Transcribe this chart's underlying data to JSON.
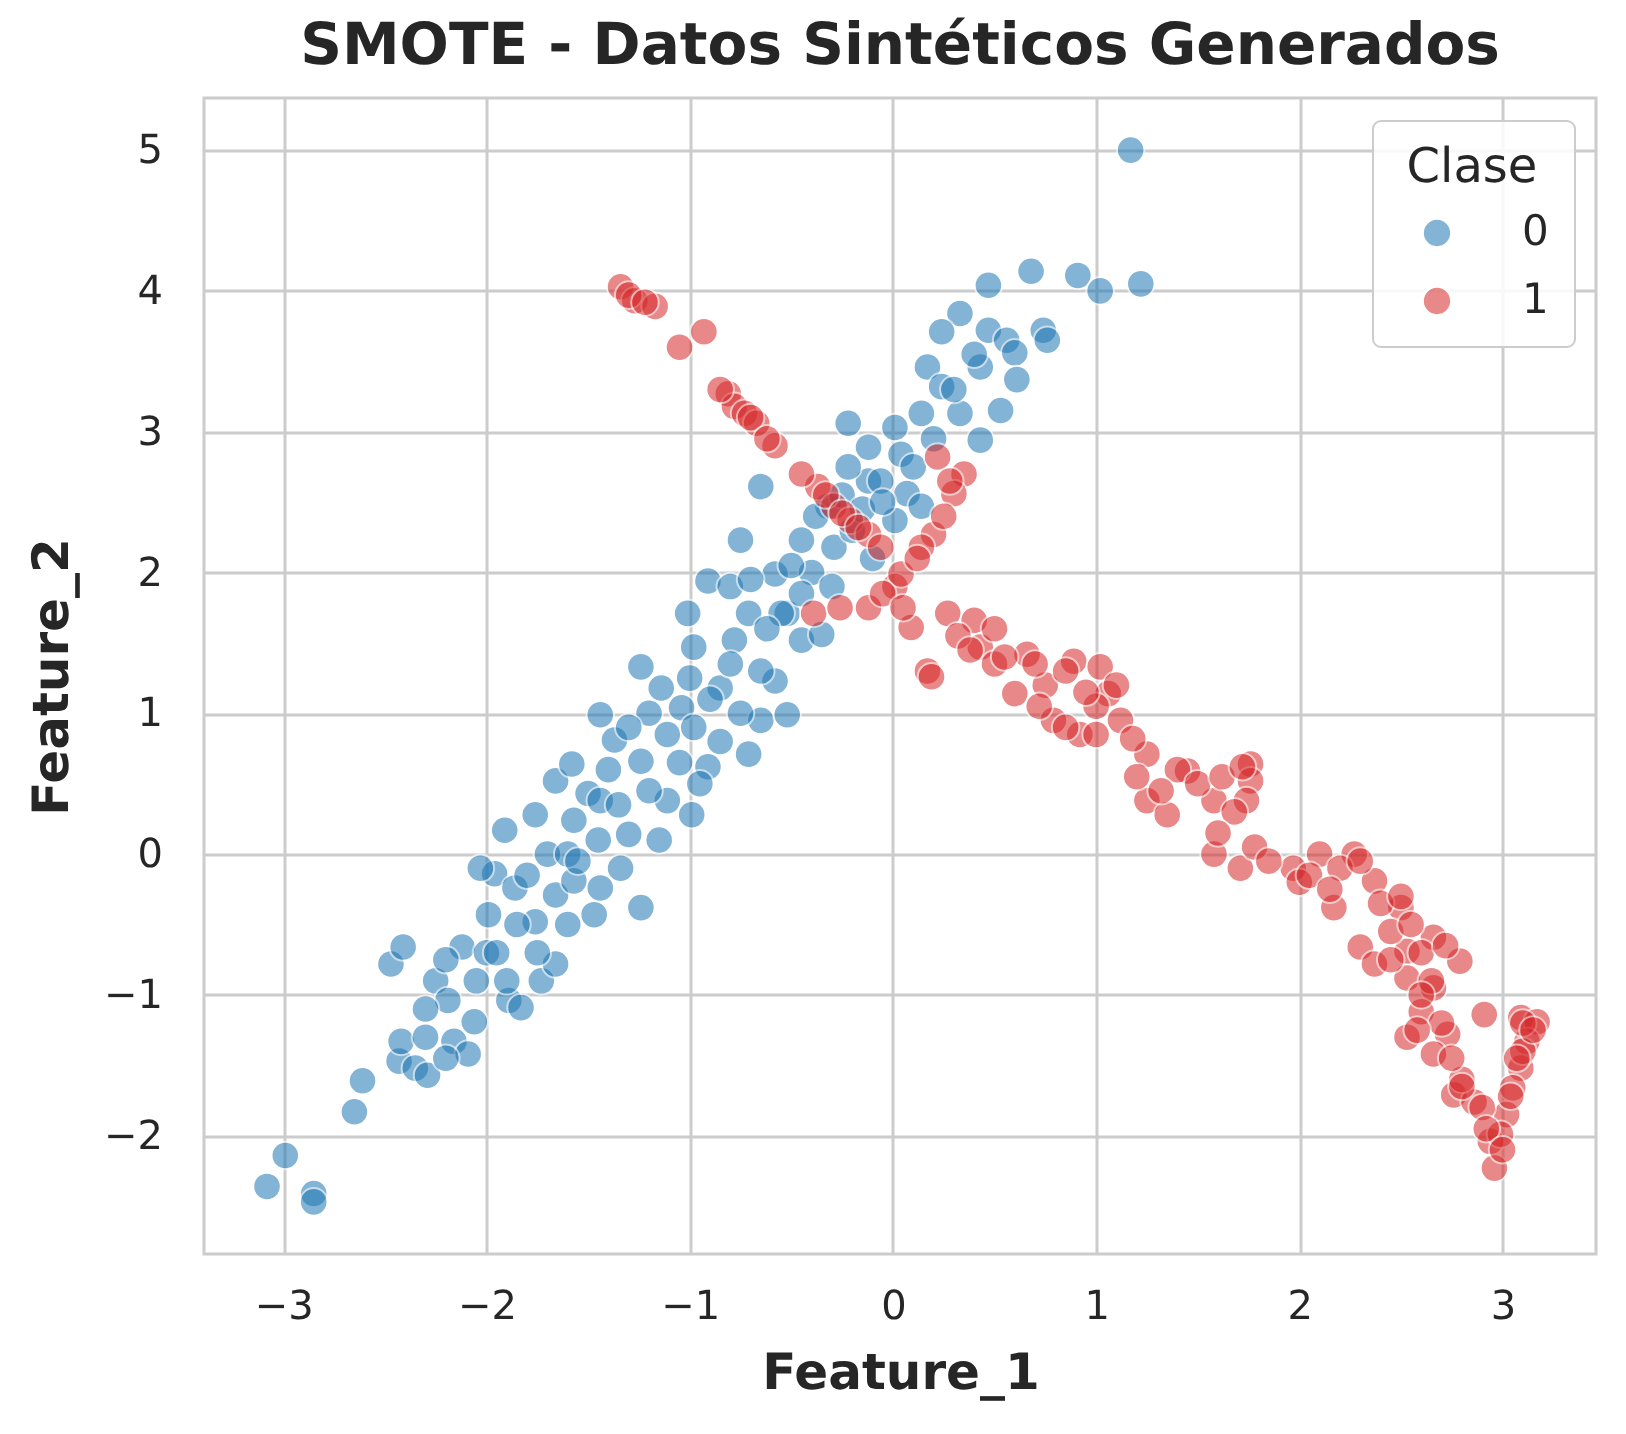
{
  "chart_data": {
    "type": "scatter",
    "title": "SMOTE - Datos Sintéticos Generados",
    "xlabel": "Feature_1",
    "ylabel": "Feature_2",
    "legend_title": "Clase",
    "legend": "top right",
    "grid": true,
    "marker": "circle",
    "xlim": [
      -3.39,
      3.46
    ],
    "ylim": [
      -2.84,
      5.37
    ],
    "xticks": [
      {
        "value": -3,
        "label": "−3"
      },
      {
        "value": -2,
        "label": "−2"
      },
      {
        "value": -1,
        "label": "−1"
      },
      0,
      1,
      2,
      3
    ],
    "yticks": [
      {
        "value": -2,
        "label": "−2"
      },
      {
        "value": -1,
        "label": "−1"
      },
      0,
      1,
      2,
      3,
      4,
      5
    ],
    "series": [
      {
        "name": "0",
        "color": "#1f77b4",
        "x": [
          -3.08,
          -2.99,
          -2.85,
          -2.85,
          -2.65,
          -2.61,
          -2.43,
          -2.35,
          -2.29,
          -2.42,
          -2.47,
          -2.41,
          -2.16,
          -2.09,
          -2.06,
          -2.25,
          -2.19,
          -2.12,
          -1.99,
          -1.96,
          -1.91,
          -2.03,
          -1.86,
          -1.89,
          -1.83,
          -1.73,
          -1.66,
          -1.76,
          -1.66,
          -1.7,
          -1.76,
          -1.66,
          -1.58,
          -1.57,
          -1.5,
          -1.57,
          -1.47,
          -1.44,
          -1.44,
          -1.37,
          -1.44,
          -1.3,
          -1.24,
          -1.34,
          -1.24,
          -1.24,
          -1.14,
          -1.11,
          -1.11,
          -0.99,
          -1.04,
          -0.98,
          -0.91,
          -0.85,
          -0.71,
          -0.78,
          -0.98,
          -0.65,
          -0.52,
          -0.58,
          -0.71,
          -0.45,
          -0.52,
          -1.01,
          -0.91,
          -0.75,
          -0.65,
          -0.45,
          -0.58,
          -0.55,
          -0.35,
          -0.29,
          -0.22,
          -0.12,
          -0.12,
          -0.22,
          -0.32,
          0.01,
          1.17,
          0.47,
          0.68,
          0.91,
          1.02,
          1.22,
          0.33,
          0.24,
          0.47,
          0.56,
          0.74,
          0.76,
          0.6,
          0.43,
          0.61,
          0.17,
          0.24,
          0.53,
          0.33,
          0.14,
          0.43,
          0.04,
          -0.06,
          0.07,
          0.01,
          0.14,
          -0.2,
          -0.1,
          -0.4,
          -0.8,
          -1.2,
          -1.6,
          -2.3,
          -2.0,
          -2.3,
          -2.2,
          -2.05,
          -1.95,
          -1.85,
          -1.8,
          -1.75,
          -1.6,
          -1.55,
          -1.45,
          -1.4,
          -1.35,
          -1.3,
          -1.2,
          -1.15,
          -1.05,
          -1.0,
          -0.95,
          -0.9,
          -0.85,
          -0.8,
          -0.75,
          -0.7,
          -0.65,
          -0.62,
          -0.5,
          -0.45,
          -0.38,
          -0.3,
          -0.25,
          -0.15,
          -0.05,
          0.1,
          0.2,
          0.3,
          0.4,
          -1.9,
          -2.2
        ],
        "values": [
          -2.36,
          -2.14,
          -2.41,
          -2.47,
          -1.83,
          -1.61,
          -1.47,
          -1.52,
          -1.57,
          -1.33,
          -0.78,
          -0.66,
          -1.33,
          -1.42,
          -1.19,
          -0.9,
          -1.04,
          -0.66,
          -0.43,
          -0.14,
          0.17,
          -0.1,
          -0.24,
          -1.04,
          -1.09,
          -0.9,
          -0.78,
          -0.48,
          -0.29,
          0.0,
          0.28,
          0.52,
          0.64,
          0.24,
          0.43,
          -0.19,
          -0.43,
          -0.24,
          0.99,
          0.81,
          0.38,
          0.14,
          -0.38,
          -0.1,
          0.66,
          1.33,
          1.18,
          0.85,
          0.38,
          0.28,
          1.04,
          0.9,
          0.62,
          1.18,
          0.71,
          1.52,
          1.47,
          0.95,
          0.99,
          1.23,
          1.71,
          1.52,
          1.71,
          1.71,
          1.94,
          2.23,
          2.61,
          2.23,
          1.99,
          1.71,
          1.56,
          2.18,
          3.06,
          2.89,
          2.65,
          2.75,
          2.47,
          3.03,
          5.0,
          4.04,
          4.14,
          4.11,
          4.0,
          4.05,
          3.84,
          3.71,
          3.72,
          3.65,
          3.72,
          3.65,
          3.56,
          3.46,
          3.37,
          3.46,
          3.32,
          3.15,
          3.13,
          3.13,
          2.94,
          2.84,
          2.65,
          2.56,
          2.37,
          2.47,
          2.3,
          2.1,
          2.0,
          1.9,
          1.0,
          0.0,
          -1.3,
          -0.7,
          -1.1,
          -0.75,
          -0.9,
          -0.7,
          -0.5,
          -0.15,
          -0.7,
          -0.5,
          -0.05,
          0.1,
          0.6,
          0.35,
          0.9,
          0.45,
          0.1,
          0.65,
          1.25,
          0.5,
          1.1,
          0.8,
          1.35,
          1.0,
          1.95,
          1.3,
          1.6,
          2.05,
          1.85,
          2.4,
          1.9,
          2.55,
          2.45,
          2.5,
          2.75,
          2.95,
          3.3,
          3.55,
          -0.9,
          -1.45
        ]
      },
      {
        "name": "1",
        "color": "#d62728",
        "x": [
          -1.34,
          -1.27,
          -1.17,
          -1.05,
          -0.93,
          -0.81,
          -0.78,
          -0.73,
          -0.67,
          -0.58,
          -0.37,
          -0.29,
          -0.21,
          -0.12,
          -0.06,
          -0.39,
          -0.26,
          -0.12,
          0.01,
          0.22,
          0.35,
          0.3,
          0.2,
          0.14,
          0.04,
          0.09,
          0.27,
          0.4,
          0.43,
          0.17,
          0.66,
          0.89,
          1.02,
          0.19,
          0.6,
          0.79,
          0.92,
          1.06,
          1.12,
          1.25,
          1.25,
          1.35,
          1.45,
          1.58,
          1.76,
          1.76,
          1.74,
          1.58,
          1.71,
          1.78,
          1.97,
          2.1,
          2.27,
          2.17,
          2.37,
          2.5,
          2.3,
          2.37,
          2.53,
          2.66,
          2.79,
          2.53,
          2.66,
          2.6,
          2.53,
          2.73,
          2.66,
          2.76,
          2.86,
          2.91,
          2.94,
          2.96,
          3.09,
          3.17,
          3.12,
          3.09,
          3.05,
          3.02,
          2.99,
          0.5,
          0.75,
          1.0,
          1.4,
          2.0,
          2.2,
          2.45,
          2.65,
          2.8,
          3.1,
          -1.3,
          -1.22,
          -0.85,
          -0.7,
          -0.62,
          -0.45,
          -0.33,
          -0.25,
          -0.17,
          -0.05,
          0.05,
          0.12,
          0.25,
          0.28,
          0.32,
          0.38,
          0.55,
          0.5,
          0.7,
          0.85,
          0.95,
          0.72,
          0.85,
          1.0,
          1.18,
          1.2,
          1.32,
          1.5,
          1.62,
          1.68,
          1.6,
          1.72,
          1.85,
          2.05,
          2.15,
          2.3,
          2.4,
          2.5,
          2.55,
          2.45,
          2.6,
          2.72,
          2.6,
          2.7,
          2.58,
          2.75,
          2.8,
          2.9,
          2.92,
          3.0,
          3.1,
          3.15,
          3.07,
          3.04,
          1.1
        ],
        "values": [
          4.03,
          3.93,
          3.89,
          3.6,
          3.71,
          3.27,
          3.18,
          3.13,
          3.06,
          2.9,
          2.61,
          2.47,
          2.37,
          2.27,
          2.18,
          1.71,
          1.75,
          1.75,
          1.9,
          2.82,
          2.7,
          2.56,
          2.27,
          2.18,
          1.99,
          1.61,
          1.71,
          1.66,
          1.47,
          1.3,
          1.42,
          1.37,
          1.33,
          1.26,
          1.14,
          0.95,
          0.85,
          1.14,
          0.95,
          0.71,
          0.38,
          0.28,
          0.59,
          0.38,
          0.64,
          0.52,
          0.38,
          0.0,
          -0.1,
          0.05,
          -0.1,
          0.0,
          0.0,
          -0.38,
          -0.19,
          -0.38,
          -0.66,
          -0.78,
          -0.69,
          -0.59,
          -0.76,
          -0.88,
          -0.95,
          -1.12,
          -1.3,
          -1.28,
          -1.42,
          -1.71,
          -1.76,
          -1.14,
          -2.04,
          -2.23,
          -1.16,
          -1.19,
          -1.33,
          -1.52,
          -1.66,
          -1.85,
          -1.99,
          1.35,
          1.2,
          1.05,
          0.6,
          -0.2,
          -0.1,
          -0.55,
          -0.9,
          -1.6,
          -1.4,
          3.97,
          3.92,
          3.3,
          3.1,
          2.95,
          2.7,
          2.55,
          2.42,
          2.32,
          1.85,
          1.75,
          2.1,
          2.4,
          2.65,
          1.55,
          1.45,
          1.4,
          1.6,
          1.35,
          1.3,
          1.15,
          1.05,
          0.9,
          0.85,
          0.82,
          0.55,
          0.45,
          0.5,
          0.55,
          0.3,
          0.15,
          0.62,
          -0.05,
          -0.15,
          -0.25,
          -0.05,
          -0.35,
          -0.3,
          -0.5,
          -0.75,
          -0.7,
          -0.65,
          -1.0,
          -1.2,
          -1.25,
          -1.45,
          -1.65,
          -1.8,
          -1.95,
          -2.1,
          -1.2,
          -1.25,
          -1.45,
          -1.72,
          1.2
        ]
      }
    ]
  }
}
